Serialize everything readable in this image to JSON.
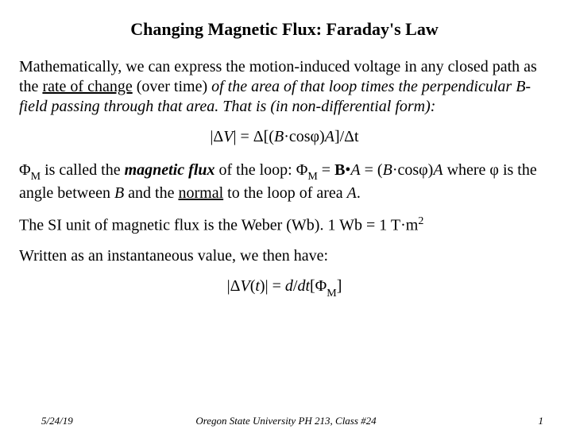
{
  "title": "Changing Magnetic Flux:  Faraday's Law",
  "para1": {
    "t1": "Mathematically, we can express the motion-induced voltage in any closed path as the ",
    "u1": "rate of change",
    "t2": " (over time) ",
    "i1": "of the area of that loop times the perpendicular B-field passing through that area.  That is (in non-differential form):"
  },
  "eq1": {
    "t1": "|Δ",
    "i1": "V",
    "t2": "| = Δ[(",
    "i2": "B",
    "t3": "·cosφ)",
    "i3": "A",
    "t4": "]/Δt"
  },
  "para2": {
    "t1": "Φ",
    "sub1": "M",
    "t2": " is called the ",
    "bi1": "magnetic flux",
    "t3": " of the loop:  Φ",
    "sub2": "M",
    "t4": " = ",
    "b1": "B",
    "t5": "•",
    "i1": "A",
    "t6": "  = (",
    "i2": "B",
    "t7": "·cosφ)",
    "i3": "A",
    "t8": " where φ is the angle between ",
    "i4": "B",
    "t9": " and the ",
    "u1": "normal",
    "t10": " to the loop of area ",
    "i5": "A",
    "t11": "."
  },
  "para3": {
    "t1": "The SI unit of magnetic flux is the Weber (Wb).  1 Wb = 1 T·m",
    "sup1": "2"
  },
  "para4": "Written as an instantaneous value, we then have:",
  "eq2": {
    "t1": "|Δ",
    "i1": "V",
    "t2": "(",
    "i2": "t",
    "t3": ")| = ",
    "i3": "d",
    "t4": "/",
    "i4": "d",
    "i5": "t",
    "t5": "[Φ",
    "sub1": "M",
    "t6": "]"
  },
  "footer": {
    "date": "5/24/19",
    "center": "Oregon State University PH 213, Class #24",
    "page": "1"
  }
}
